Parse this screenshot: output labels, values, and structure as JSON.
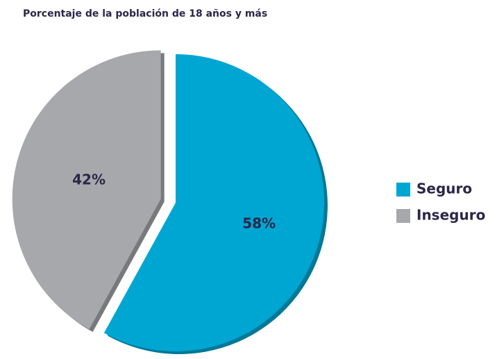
{
  "chart_data": {
    "type": "pie",
    "title": "Porcentaje de la población de 18 años y más",
    "categories": [
      "Seguro",
      "Inseguro"
    ],
    "values": [
      58,
      42
    ],
    "value_labels": [
      "58%",
      "42%"
    ],
    "colors": [
      "#00a6d2",
      "#a7a8ac"
    ],
    "legend": "right"
  }
}
